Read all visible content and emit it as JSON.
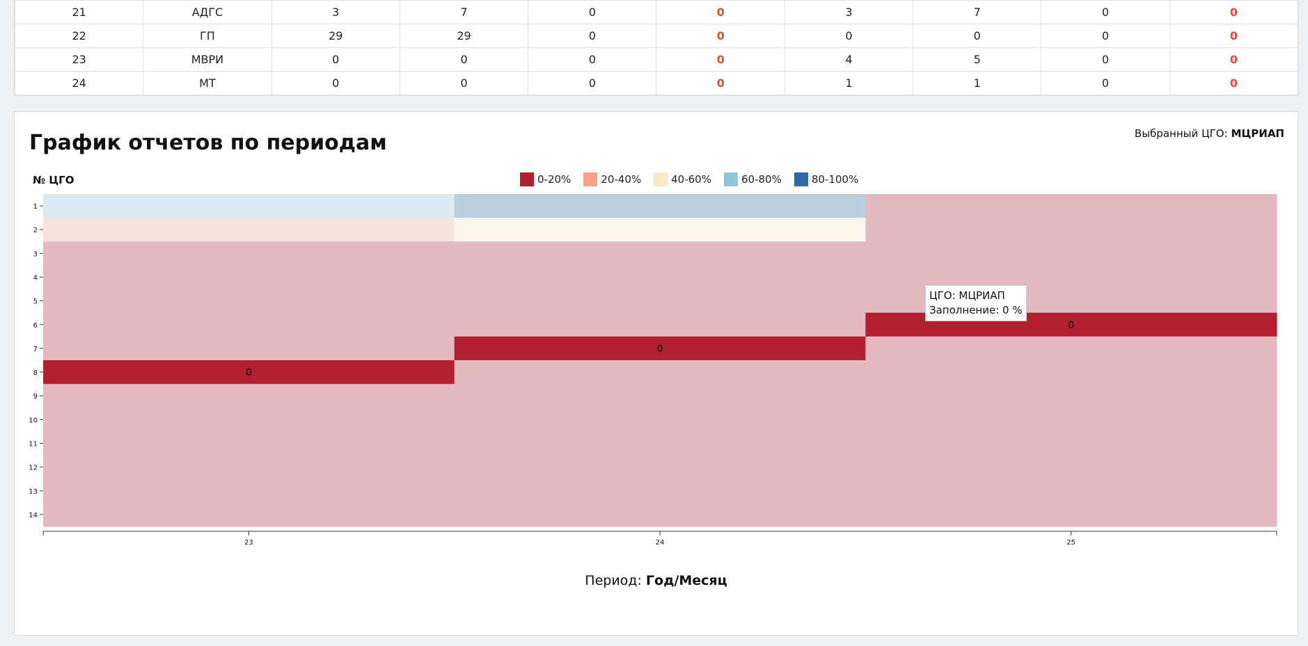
{
  "table": {
    "rows": [
      {
        "cells": [
          "21",
          "АДГС",
          "3",
          "7",
          "0",
          "0",
          "3",
          "7",
          "0",
          "0"
        ]
      },
      {
        "cells": [
          "22",
          "ГП",
          "29",
          "29",
          "0",
          "0",
          "0",
          "0",
          "0",
          "0"
        ]
      },
      {
        "cells": [
          "23",
          "МВРИ",
          "0",
          "0",
          "0",
          "0",
          "4",
          "5",
          "0",
          "0"
        ]
      },
      {
        "cells": [
          "24",
          "МТ",
          "0",
          "0",
          "0",
          "0",
          "1",
          "1",
          "0",
          "0"
        ]
      }
    ],
    "highlight_color": "#ef4a2a"
  },
  "panel": {
    "title": "График отчетов по периодам",
    "selected_label": "Выбранный ЦГО:",
    "selected_value": "МЦРИАП",
    "y_axis_label": "№ ЦГО",
    "x_axis_label_prefix": "Период:",
    "x_axis_label_value": "Год/Месяц",
    "tooltip": {
      "line1": "ЦГО: МЦРИАП",
      "line2": "Заполнение: 0 %"
    }
  },
  "legend": [
    {
      "label": "0-20%",
      "color": "#b2202f"
    },
    {
      "label": "20-40%",
      "color": "#f3a583"
    },
    {
      "label": "40-60%",
      "color": "#fbe8c5"
    },
    {
      "label": "60-80%",
      "color": "#93c4de"
    },
    {
      "label": "80-100%",
      "color": "#2d6aa8"
    }
  ],
  "chart_data": {
    "type": "heatmap",
    "x": [
      "23",
      "24",
      "25"
    ],
    "y": [
      "1",
      "2",
      "3",
      "4",
      "5",
      "6",
      "7",
      "8",
      "9",
      "10",
      "11",
      "12",
      "13",
      "14"
    ],
    "cells": [
      {
        "x": "23",
        "y": "1",
        "color": "#dcebf2"
      },
      {
        "x": "24",
        "y": "1",
        "color": "#bccfe0"
      },
      {
        "x": "25",
        "y": "1",
        "color": "#e4b9c0"
      },
      {
        "x": "23",
        "y": "2",
        "color": "#f7e3dc"
      },
      {
        "x": "24",
        "y": "2",
        "color": "#fbf7ec"
      },
      {
        "x": "25",
        "y": "2",
        "color": "#e4b9c0"
      },
      {
        "x": "23",
        "y": "8",
        "value": "0",
        "color": "#b2202f"
      },
      {
        "x": "24",
        "y": "7",
        "value": "0",
        "color": "#b2202f"
      },
      {
        "x": "25",
        "y": "6",
        "value": "0",
        "color": "#b2202f"
      }
    ],
    "default_color": "#e4b9c0",
    "xlabel": "Период: Год/Месяц",
    "ylabel": "№ ЦГО"
  }
}
